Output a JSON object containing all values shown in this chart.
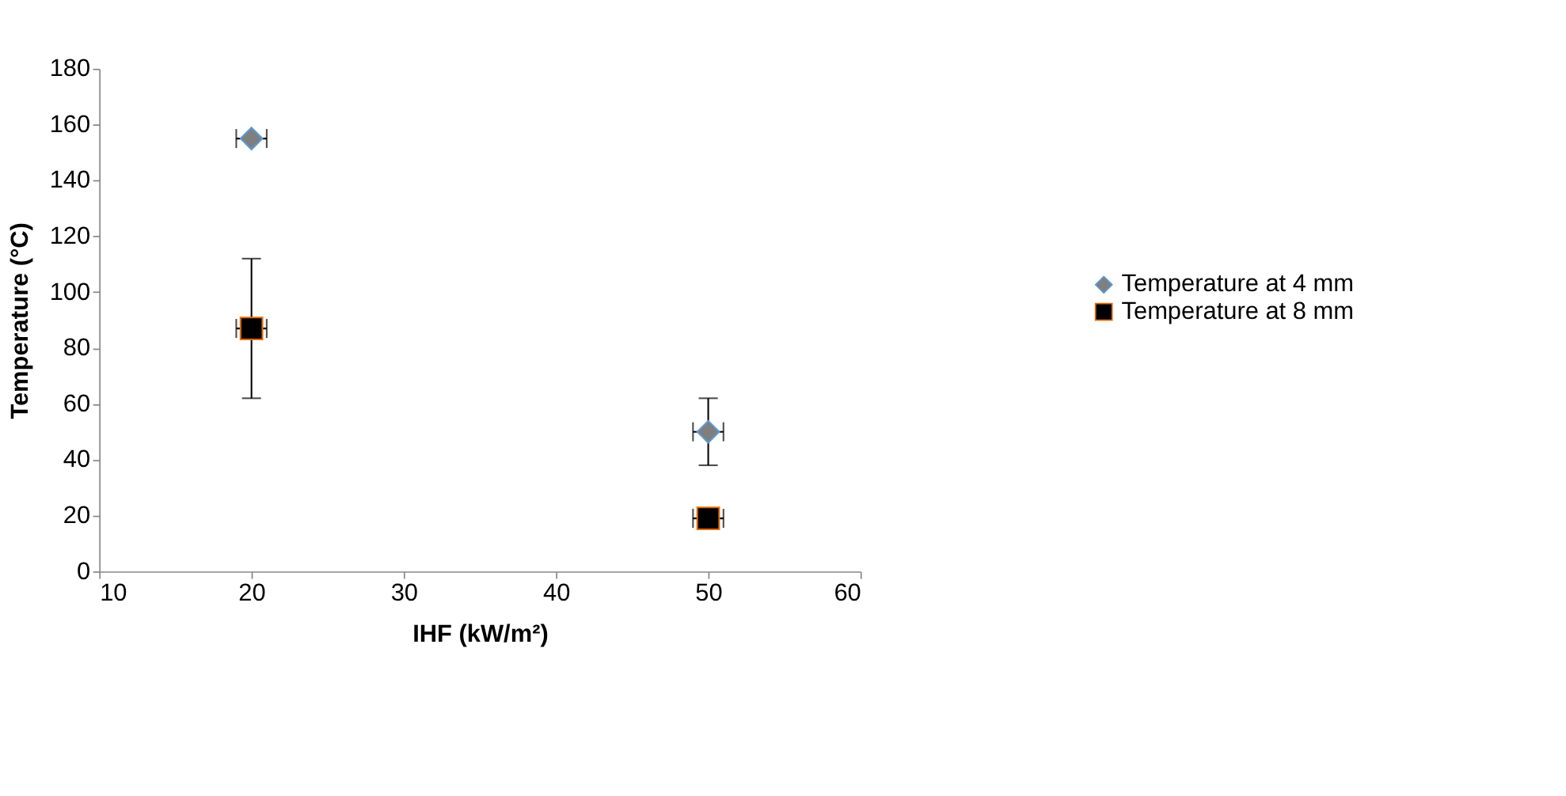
{
  "chart_data": {
    "type": "scatter",
    "xlabel": "IHF (kW/m²)",
    "ylabel": "Temperature (°C)",
    "x": [
      20,
      50
    ],
    "series": [
      {
        "name": "Temperature at 4 mm",
        "color": "#7f7f7f",
        "marker": "diamond",
        "values": [
          155,
          50
        ],
        "errors": [
          null,
          12
        ],
        "xerrors": [
          1,
          1
        ]
      },
      {
        "name": "Temperature at 8 mm",
        "color": "#000000",
        "marker": "square",
        "values": [
          87,
          19
        ],
        "errors": [
          25,
          null
        ],
        "xerrors": [
          1,
          1
        ]
      }
    ],
    "xlim": [
      10,
      60
    ],
    "xticks": [
      10,
      20,
      30,
      40,
      50,
      60
    ],
    "ylim": [
      0,
      180
    ],
    "yticks": [
      0,
      20,
      40,
      60,
      80,
      100,
      120,
      140,
      160,
      180
    ],
    "grid": false,
    "legend": "right"
  }
}
